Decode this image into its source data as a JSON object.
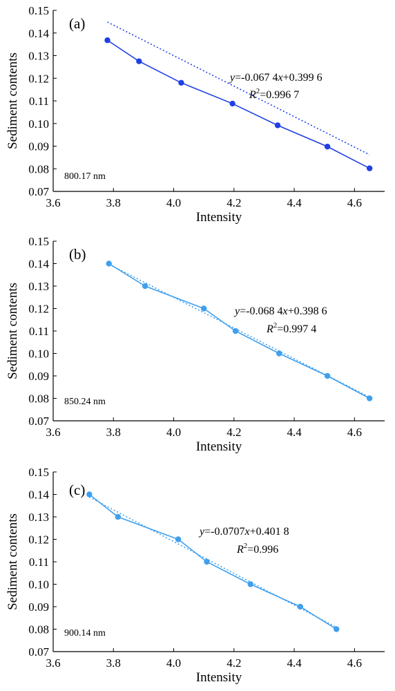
{
  "chart_data": [
    {
      "type": "line",
      "panel_label": "(a)",
      "wavelength_label": "800.17 nm",
      "color": "#1f3fe6",
      "xlabel": "Intensity",
      "ylabel": "Sediment contents",
      "xlim": [
        3.6,
        4.7
      ],
      "ylim": [
        0.07,
        0.15
      ],
      "xticks": [
        "3.6",
        "3.8",
        "4.0",
        "4.2",
        "4.4",
        "4.6"
      ],
      "yticks": [
        "0.07",
        "0.08",
        "0.09",
        "0.10",
        "0.11",
        "0.12",
        "0.13",
        "0.14",
        "0.15"
      ],
      "series": [
        {
          "x": [
            3.78,
            3.885,
            4.025,
            4.195,
            4.345,
            4.51,
            4.65
          ],
          "y": [
            0.1368,
            0.1275,
            0.118,
            0.1088,
            0.0992,
            0.0898,
            0.0802
          ]
        }
      ],
      "fit": {
        "slope": -0.0674,
        "intercept": 0.3996,
        "x_range": [
          3.78,
          4.65
        ]
      },
      "equation": {
        "y_prefix": "y",
        "body_1": "=-0.067 4",
        "x_var": "x",
        "body_2": "+0.399 6"
      },
      "r2": {
        "r": "R",
        "sup": "2",
        "value": "=0.996 7"
      }
    },
    {
      "type": "line",
      "panel_label": "(b)",
      "wavelength_label": "850.24 nm",
      "color": "#3fa0ee",
      "xlabel": "Intensity",
      "ylabel": "Sediment contents",
      "xlim": [
        3.6,
        4.7
      ],
      "ylim": [
        0.07,
        0.15
      ],
      "xticks": [
        "3.6",
        "3.8",
        "4.0",
        "4.2",
        "4.4",
        "4.6"
      ],
      "yticks": [
        "0.07",
        "0.08",
        "0.09",
        "0.10",
        "0.11",
        "0.12",
        "0.13",
        "0.14",
        "0.15"
      ],
      "series": [
        {
          "x": [
            3.785,
            3.905,
            4.1,
            4.205,
            4.35,
            4.51,
            4.65
          ],
          "y": [
            0.14,
            0.13,
            0.12,
            0.11,
            0.1,
            0.09,
            0.08
          ]
        }
      ],
      "fit": {
        "slope": -0.0684,
        "intercept": 0.3986,
        "x_range": [
          3.785,
          4.65
        ]
      },
      "equation": {
        "y_prefix": "y",
        "body_1": "=-0.068 4",
        "x_var": "x",
        "body_2": "+0.398 6"
      },
      "r2": {
        "r": "R",
        "sup": "2",
        "value": "=0.997 4"
      }
    },
    {
      "type": "line",
      "panel_label": "(c)",
      "wavelength_label": "900.14 nm",
      "color": "#3fa0ee",
      "xlabel": "Intensity",
      "ylabel": "Sediment contents",
      "xlim": [
        3.6,
        4.7
      ],
      "ylim": [
        0.07,
        0.15
      ],
      "xticks": [
        "3.6",
        "3.8",
        "4.0",
        "4.2",
        "4.4",
        "4.6"
      ],
      "yticks": [
        "0.07",
        "0.08",
        "0.09",
        "0.10",
        "0.11",
        "0.12",
        "0.13",
        "0.14",
        "0.15"
      ],
      "series": [
        {
          "x": [
            3.72,
            3.815,
            4.015,
            4.11,
            4.255,
            4.42,
            4.54
          ],
          "y": [
            0.14,
            0.13,
            0.12,
            0.11,
            0.1,
            0.09,
            0.08
          ]
        }
      ],
      "fit": {
        "slope": -0.0707,
        "intercept": 0.4018,
        "x_range": [
          3.72,
          4.54
        ]
      },
      "equation": {
        "y_prefix": "y",
        "body_1": "=-0.0707",
        "x_var": "x",
        "body_2": "+0.401 8"
      },
      "r2": {
        "r": "R",
        "sup": "2",
        "value": "=0.996"
      }
    }
  ]
}
